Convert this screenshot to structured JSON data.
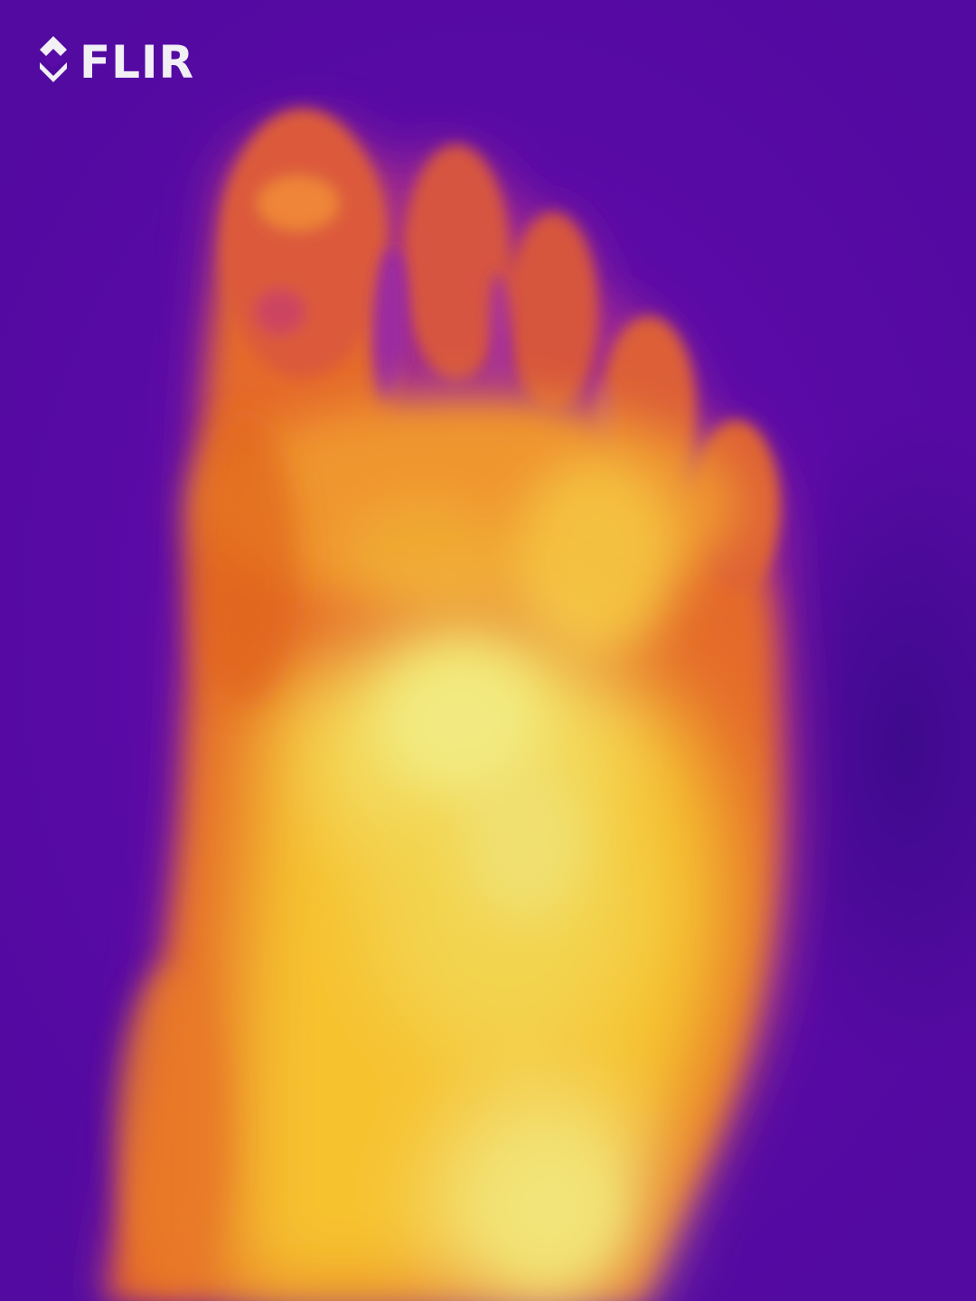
{
  "logo": {
    "text": "FLIR",
    "icon": "flir-diamond-logo-icon",
    "color": "#f2f0f5"
  },
  "palette": {
    "background": "#5a0aa6",
    "cool": "#6a0fb0",
    "warm": "#e06a2a",
    "hot": "#f6c02a",
    "hottest": "#f2e878"
  }
}
